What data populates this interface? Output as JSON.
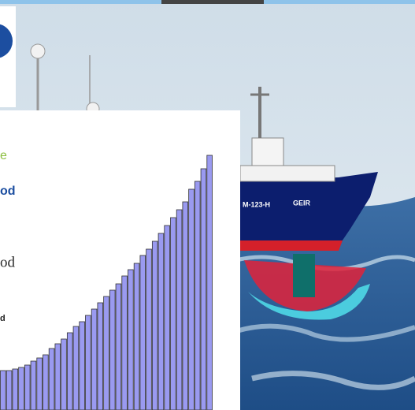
{
  "ship": {
    "hull_number": "M-123-H",
    "name": "GEIR"
  },
  "fragments": {
    "line1": "e",
    "line2": "od",
    "line3": "od",
    "line4": "d"
  },
  "chart_data": {
    "type": "bar",
    "values": [
      50,
      50,
      52,
      54,
      57,
      62,
      66,
      70,
      78,
      84,
      90,
      98,
      106,
      112,
      120,
      128,
      136,
      144,
      152,
      160,
      170,
      178,
      186,
      196,
      204,
      214,
      224,
      234,
      244,
      254,
      264,
      280,
      290,
      306,
      323
    ],
    "color": "#9a9af0",
    "ylim": [
      0,
      330
    ]
  }
}
